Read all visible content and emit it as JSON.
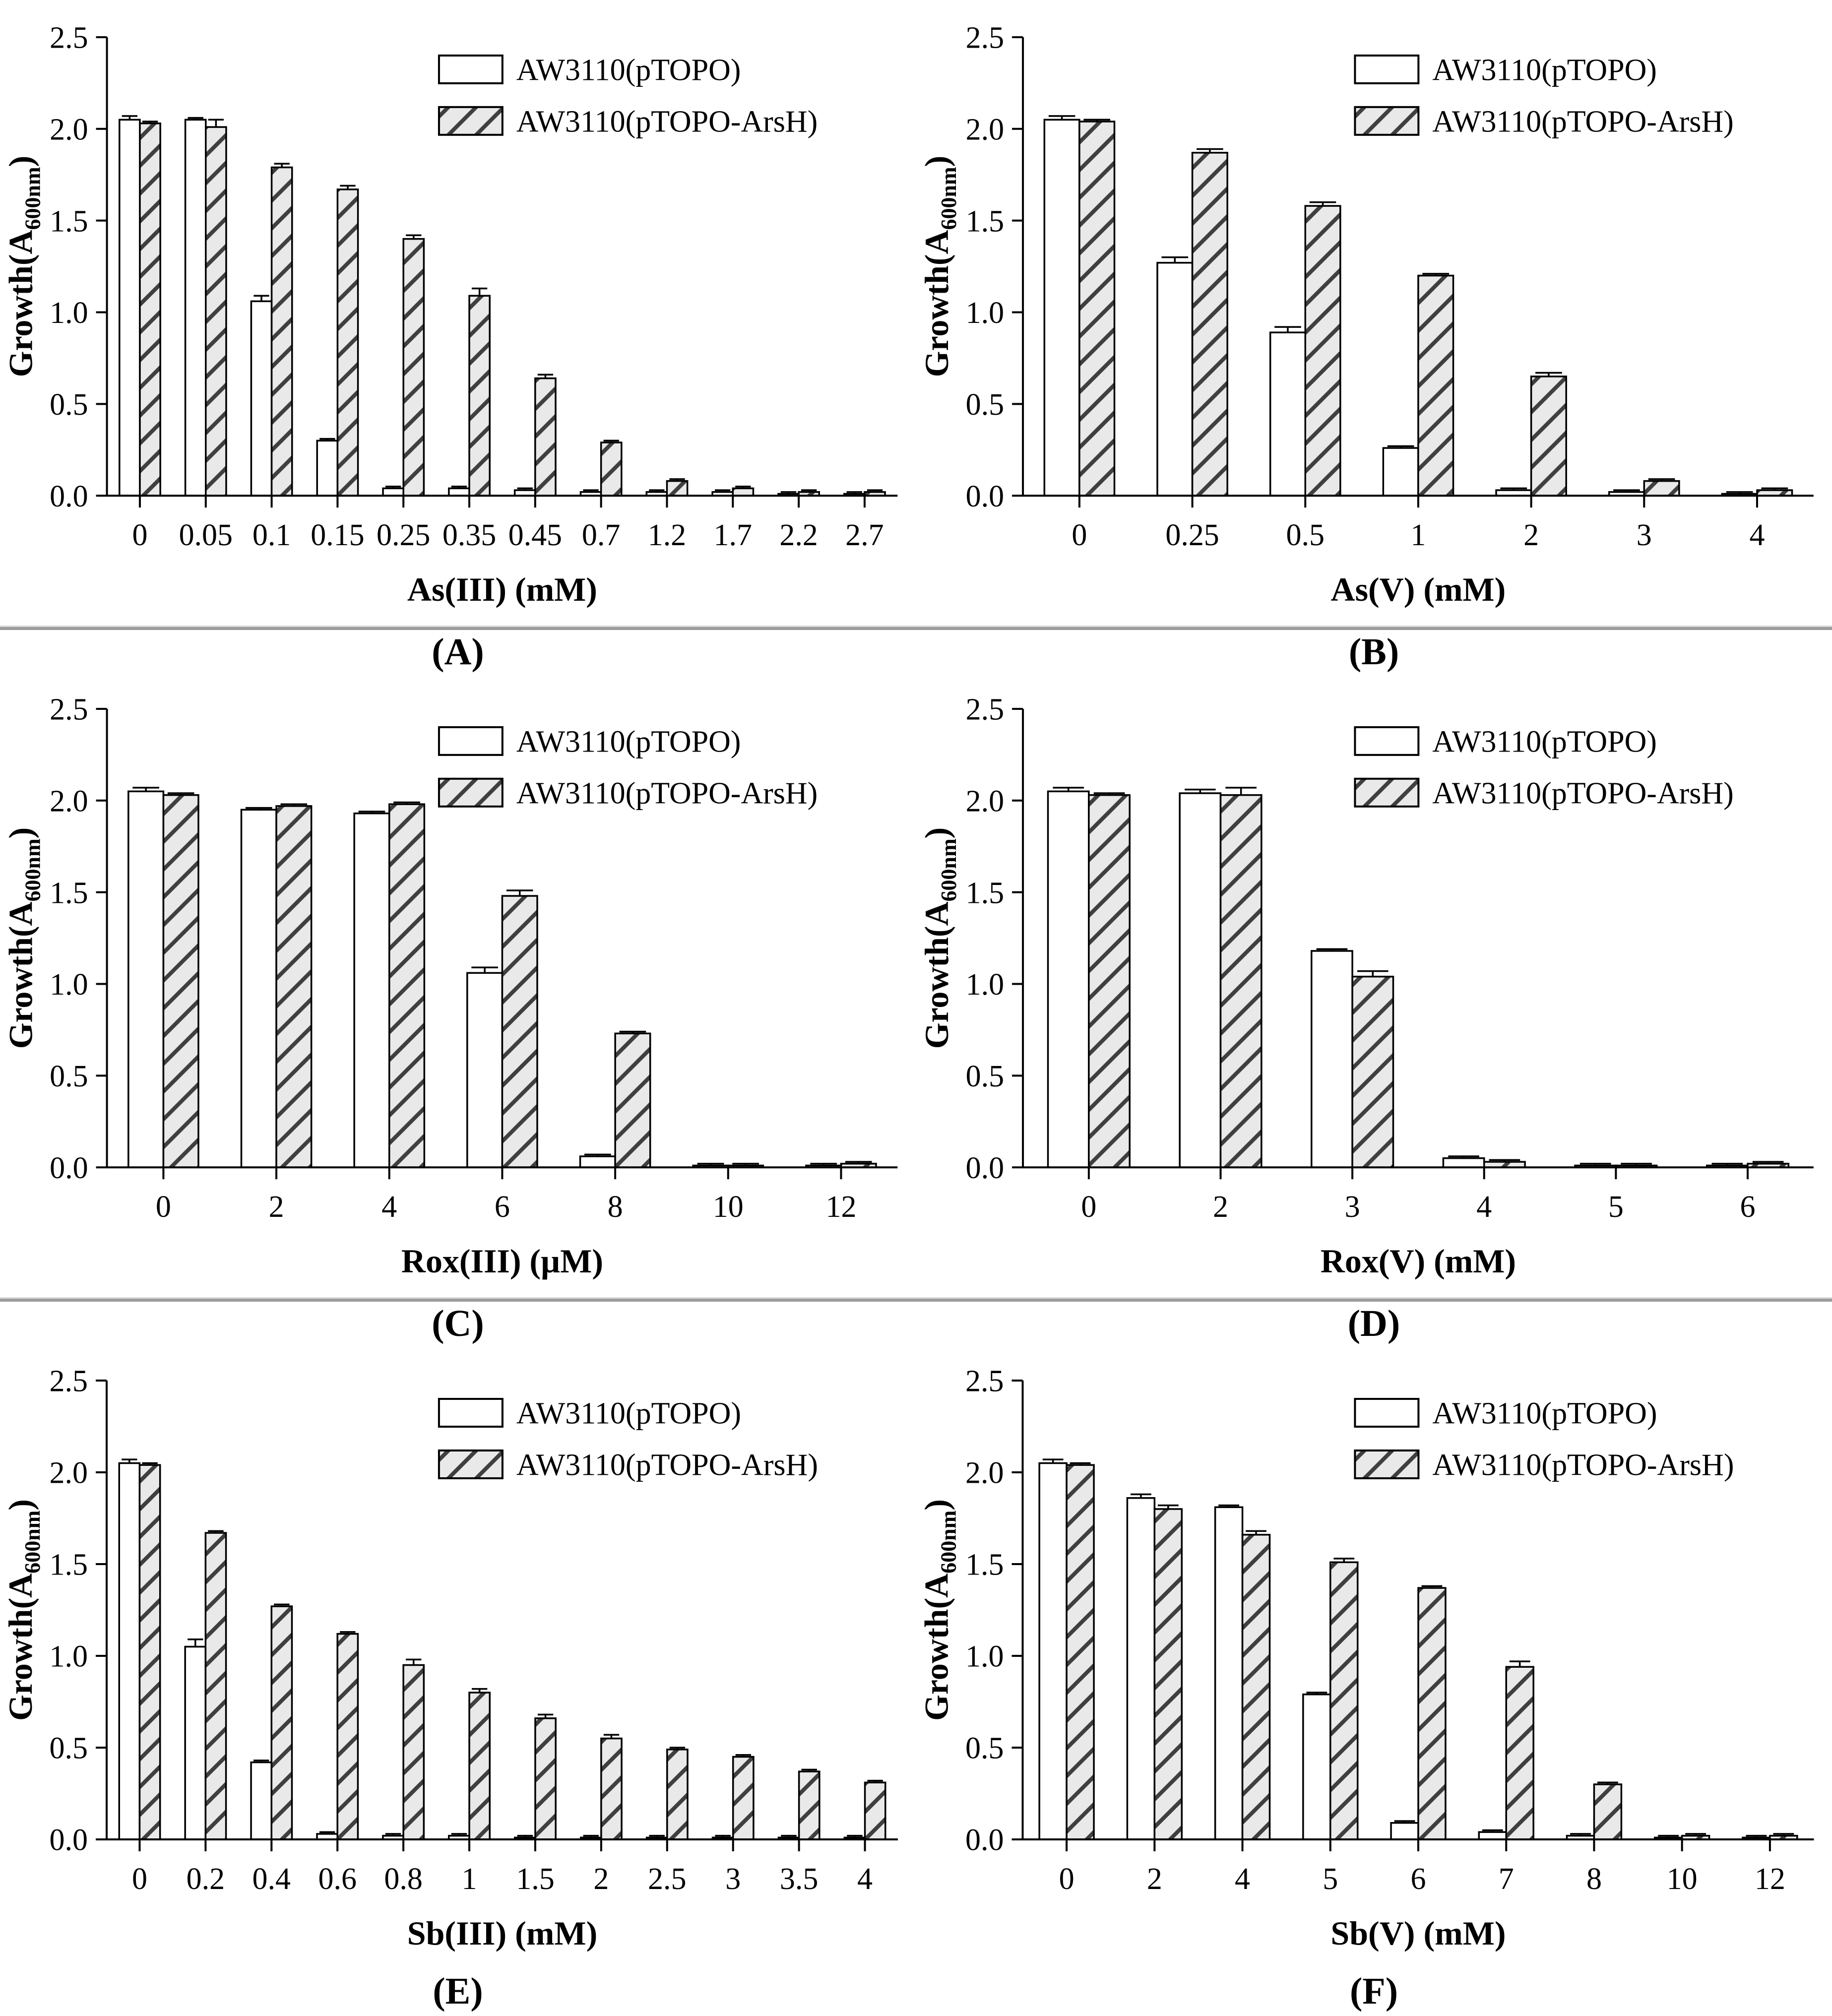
{
  "figure": {
    "legend": [
      "AW3110(pTOPO)",
      "AW3110(pTOPO-ArsH)"
    ],
    "ylabel_prefix": "Growth(A",
    "ylabel_sub": "600nm",
    "ylabel_suffix": ")",
    "colors": {
      "white_bar_fill": "#ffffff",
      "hatch_fill": "#e9e9e9",
      "hatch_line": "#3f3f3f",
      "axis": "#000000",
      "separator": "#9c9c9c",
      "text": "#000000"
    }
  },
  "chart_data": [
    {
      "id": "A",
      "panel_label": "(A)",
      "type": "bar",
      "title": "",
      "xlabel": "As(III) (mM)",
      "ylabel": "Growth(A600nm)",
      "ylim": [
        0,
        2.5
      ],
      "yticks": [
        "0.0",
        "0.5",
        "1.0",
        "1.5",
        "2.0",
        "2.5"
      ],
      "grid": false,
      "legend_position": "top-right",
      "categories": [
        "0",
        "0.05",
        "0.1",
        "0.15",
        "0.25",
        "0.35",
        "0.45",
        "0.7",
        "1.2",
        "1.7",
        "2.2",
        "2.7"
      ],
      "series": [
        {
          "name": "AW3110(pTOPO)",
          "style": "white",
          "values": [
            2.05,
            2.05,
            1.06,
            0.3,
            0.04,
            0.04,
            0.03,
            0.02,
            0.02,
            0.02,
            0.01,
            0.01
          ],
          "errors": [
            0.02,
            0.01,
            0.03,
            0.01,
            0.01,
            0.01,
            0.01,
            0.01,
            0.01,
            0.01,
            0.01,
            0.01
          ]
        },
        {
          "name": "AW3110(pTOPO-ArsH)",
          "style": "hatched",
          "values": [
            2.03,
            2.01,
            1.79,
            1.67,
            1.4,
            1.09,
            0.64,
            0.29,
            0.08,
            0.04,
            0.02,
            0.02
          ],
          "errors": [
            0.01,
            0.04,
            0.02,
            0.02,
            0.02,
            0.04,
            0.02,
            0.01,
            0.01,
            0.01,
            0.01,
            0.01
          ]
        }
      ]
    },
    {
      "id": "B",
      "panel_label": "(B)",
      "type": "bar",
      "title": "",
      "xlabel": "As(V) (mM)",
      "ylabel": "Growth(A600nm)",
      "ylim": [
        0,
        2.5
      ],
      "yticks": [
        "0.0",
        "0.5",
        "1.0",
        "1.5",
        "2.0",
        "2.5"
      ],
      "grid": false,
      "legend_position": "top-right",
      "categories": [
        "0",
        "0.25",
        "0.5",
        "1",
        "2",
        "3",
        "4"
      ],
      "series": [
        {
          "name": "AW3110(pTOPO)",
          "style": "white",
          "values": [
            2.05,
            1.27,
            0.89,
            0.26,
            0.03,
            0.02,
            0.01
          ],
          "errors": [
            0.02,
            0.03,
            0.03,
            0.01,
            0.01,
            0.01,
            0.01
          ]
        },
        {
          "name": "AW3110(pTOPO-ArsH)",
          "style": "hatched",
          "values": [
            2.04,
            1.87,
            1.58,
            1.2,
            0.65,
            0.08,
            0.03
          ],
          "errors": [
            0.01,
            0.02,
            0.02,
            0.01,
            0.02,
            0.01,
            0.01
          ]
        }
      ]
    },
    {
      "id": "C",
      "panel_label": "(C)",
      "type": "bar",
      "title": "",
      "xlabel": "Rox(III) (µM)",
      "ylabel": "Growth(A600nm)",
      "ylim": [
        0,
        2.5
      ],
      "yticks": [
        "0.0",
        "0.5",
        "1.0",
        "1.5",
        "2.0",
        "2.5"
      ],
      "grid": false,
      "legend_position": "top-right",
      "categories": [
        "0",
        "2",
        "4",
        "6",
        "8",
        "10",
        "12"
      ],
      "series": [
        {
          "name": "AW3110(pTOPO)",
          "style": "white",
          "values": [
            2.05,
            1.95,
            1.93,
            1.06,
            0.06,
            0.01,
            0.01
          ],
          "errors": [
            0.02,
            0.01,
            0.01,
            0.03,
            0.01,
            0.01,
            0.01
          ]
        },
        {
          "name": "AW3110(pTOPO-ArsH)",
          "style": "hatched",
          "values": [
            2.03,
            1.97,
            1.98,
            1.48,
            0.73,
            0.01,
            0.02
          ],
          "errors": [
            0.01,
            0.01,
            0.01,
            0.03,
            0.01,
            0.01,
            0.01
          ]
        }
      ]
    },
    {
      "id": "D",
      "panel_label": "(D)",
      "type": "bar",
      "title": "",
      "xlabel": "Rox(V) (mM)",
      "ylabel": "Growth(A600nm)",
      "ylim": [
        0,
        2.5
      ],
      "yticks": [
        "0.0",
        "0.5",
        "1.0",
        "1.5",
        "2.0",
        "2.5"
      ],
      "grid": false,
      "legend_position": "top-right",
      "categories": [
        "0",
        "2",
        "3",
        "4",
        "5",
        "6"
      ],
      "series": [
        {
          "name": "AW3110(pTOPO)",
          "style": "white",
          "values": [
            2.05,
            2.04,
            1.18,
            0.05,
            0.01,
            0.01
          ],
          "errors": [
            0.02,
            0.02,
            0.01,
            0.01,
            0.01,
            0.01
          ]
        },
        {
          "name": "AW3110(pTOPO-ArsH)",
          "style": "hatched",
          "values": [
            2.03,
            2.03,
            1.04,
            0.03,
            0.01,
            0.02
          ],
          "errors": [
            0.01,
            0.04,
            0.03,
            0.01,
            0.01,
            0.01
          ]
        }
      ]
    },
    {
      "id": "E",
      "panel_label": "(E)",
      "type": "bar",
      "title": "",
      "xlabel": "Sb(III) (mM)",
      "ylabel": "Growth(A600nm)",
      "ylim": [
        0,
        2.5
      ],
      "yticks": [
        "0.0",
        "0.5",
        "1.0",
        "1.5",
        "2.0",
        "2.5"
      ],
      "grid": false,
      "legend_position": "top-right",
      "categories": [
        "0",
        "0.2",
        "0.4",
        "0.6",
        "0.8",
        "1",
        "1.5",
        "2",
        "2.5",
        "3",
        "3.5",
        "4"
      ],
      "series": [
        {
          "name": "AW3110(pTOPO)",
          "style": "white",
          "values": [
            2.05,
            1.05,
            0.42,
            0.03,
            0.02,
            0.02,
            0.01,
            0.01,
            0.01,
            0.01,
            0.01,
            0.01
          ],
          "errors": [
            0.02,
            0.04,
            0.01,
            0.01,
            0.01,
            0.01,
            0.01,
            0.01,
            0.01,
            0.01,
            0.01,
            0.01
          ]
        },
        {
          "name": "AW3110(pTOPO-ArsH)",
          "style": "hatched",
          "values": [
            2.04,
            1.67,
            1.27,
            1.12,
            0.95,
            0.8,
            0.66,
            0.55,
            0.49,
            0.45,
            0.37,
            0.31
          ],
          "errors": [
            0.01,
            0.01,
            0.01,
            0.01,
            0.03,
            0.02,
            0.02,
            0.02,
            0.01,
            0.01,
            0.01,
            0.01
          ]
        }
      ]
    },
    {
      "id": "F",
      "panel_label": "(F)",
      "type": "bar",
      "title": "",
      "xlabel": "Sb(V) (mM)",
      "ylabel": "Growth(A600nm)",
      "ylim": [
        0,
        2.5
      ],
      "yticks": [
        "0.0",
        "0.5",
        "1.0",
        "1.5",
        "2.0",
        "2.5"
      ],
      "grid": false,
      "legend_position": "top-right",
      "categories": [
        "0",
        "2",
        "4",
        "5",
        "6",
        "7",
        "8",
        "10",
        "12"
      ],
      "series": [
        {
          "name": "AW3110(pTOPO)",
          "style": "white",
          "values": [
            2.05,
            1.86,
            1.81,
            0.79,
            0.09,
            0.04,
            0.02,
            0.01,
            0.01
          ],
          "errors": [
            0.02,
            0.02,
            0.01,
            0.01,
            0.01,
            0.01,
            0.01,
            0.01,
            0.01
          ]
        },
        {
          "name": "AW3110(pTOPO-ArsH)",
          "style": "hatched",
          "values": [
            2.04,
            1.8,
            1.66,
            1.51,
            1.37,
            0.94,
            0.3,
            0.02,
            0.02
          ],
          "errors": [
            0.01,
            0.02,
            0.02,
            0.02,
            0.01,
            0.03,
            0.01,
            0.01,
            0.01
          ]
        }
      ]
    }
  ]
}
